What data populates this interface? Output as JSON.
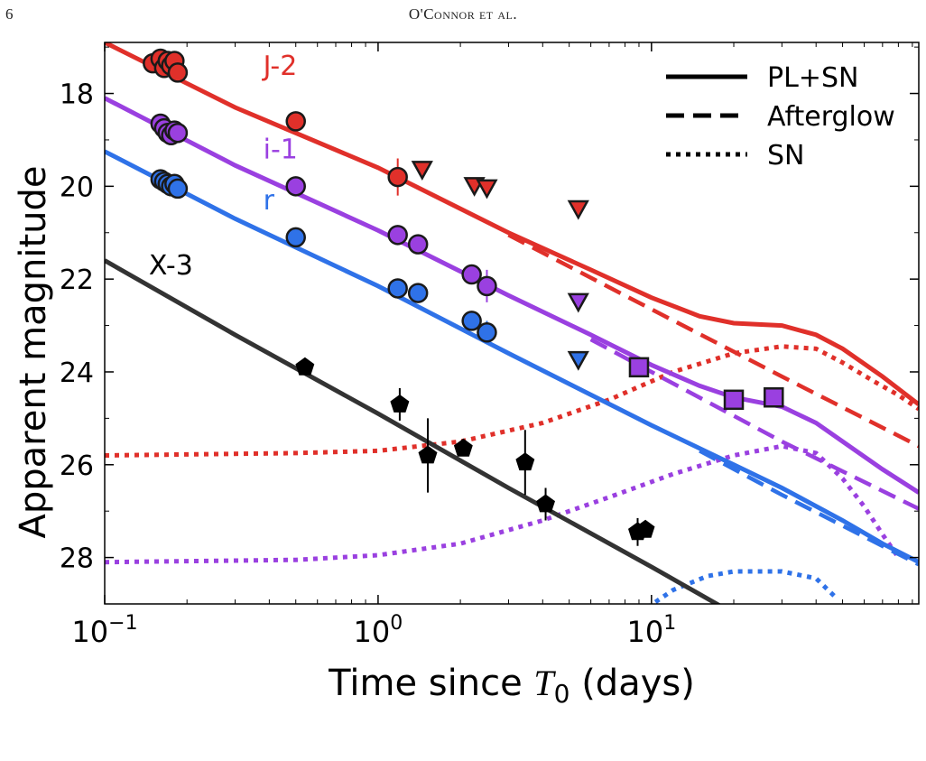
{
  "page": {
    "number": "6",
    "running_head": "O'Connor et al."
  },
  "chart_data": {
    "type": "line",
    "xlabel": "Time since T0 (days)",
    "xlabel_main": "Time since ",
    "xlabel_T": "T",
    "xlabel_sub": "0",
    "xlabel_tail": " (days)",
    "ylabel": "Apparent magnitude",
    "xscale": "log",
    "xlim": [
      0.1,
      95
    ],
    "ylim": [
      29.0,
      16.9
    ],
    "y_inverted": true,
    "xticks": [
      {
        "value": 0.1,
        "base": "10",
        "exp": "−1"
      },
      {
        "value": 1,
        "base": "10",
        "exp": "0"
      },
      {
        "value": 10,
        "base": "10",
        "exp": "1"
      }
    ],
    "yticks": [
      18,
      20,
      22,
      24,
      26,
      28
    ],
    "legend": {
      "placement": "top-right",
      "entries": [
        {
          "label": "PL+SN",
          "style": "solid"
        },
        {
          "label": "Afterglow",
          "style": "dashed"
        },
        {
          "label": "SN",
          "style": "dotted"
        }
      ]
    },
    "series": [
      {
        "name": "J-2",
        "color": "#e0302a",
        "label_pos": [
          0.38,
          17.6
        ],
        "plsn": [
          [
            0.1,
            16.9
          ],
          [
            0.3,
            18.3
          ],
          [
            1,
            19.6
          ],
          [
            3,
            21.0
          ],
          [
            6,
            21.8
          ],
          [
            10,
            22.4
          ],
          [
            15,
            22.8
          ],
          [
            20,
            22.95
          ],
          [
            30,
            23.0
          ],
          [
            40,
            23.2
          ],
          [
            50,
            23.5
          ],
          [
            70,
            24.1
          ],
          [
            95,
            24.7
          ]
        ],
        "afterglow": [
          [
            3,
            21.05
          ],
          [
            10,
            22.65
          ],
          [
            30,
            24.1
          ],
          [
            95,
            25.6
          ]
        ],
        "sn": [
          [
            0.1,
            25.8
          ],
          [
            0.5,
            25.75
          ],
          [
            1,
            25.7
          ],
          [
            2,
            25.5
          ],
          [
            4,
            25.1
          ],
          [
            7,
            24.6
          ],
          [
            12,
            24.0
          ],
          [
            20,
            23.6
          ],
          [
            30,
            23.45
          ],
          [
            40,
            23.5
          ],
          [
            50,
            23.8
          ],
          [
            65,
            24.2
          ],
          [
            80,
            24.5
          ],
          [
            95,
            24.8
          ]
        ],
        "points": [
          {
            "x": 0.15,
            "y": 17.35
          },
          {
            "x": 0.16,
            "y": 17.25
          },
          {
            "x": 0.165,
            "y": 17.45
          },
          {
            "x": 0.17,
            "y": 17.3
          },
          {
            "x": 0.175,
            "y": 17.4
          },
          {
            "x": 0.18,
            "y": 17.3
          },
          {
            "x": 0.185,
            "y": 17.55
          },
          {
            "x": 0.5,
            "y": 18.6
          },
          {
            "x": 1.18,
            "y": 19.8,
            "err": 0.4
          }
        ],
        "limits": [
          {
            "x": 1.45,
            "y": 19.65
          },
          {
            "x": 2.25,
            "y": 20.0
          },
          {
            "x": 2.5,
            "y": 20.05
          },
          {
            "x": 5.4,
            "y": 20.5
          }
        ],
        "squares": []
      },
      {
        "name": "i-1",
        "color": "#9a40e0",
        "label_pos": [
          0.38,
          19.4
        ],
        "plsn": [
          [
            0.1,
            18.1
          ],
          [
            0.3,
            19.55
          ],
          [
            1,
            20.95
          ],
          [
            3,
            22.35
          ],
          [
            6,
            23.2
          ],
          [
            10,
            23.85
          ],
          [
            15,
            24.3
          ],
          [
            20,
            24.55
          ],
          [
            30,
            24.75
          ],
          [
            40,
            25.1
          ],
          [
            50,
            25.5
          ],
          [
            70,
            26.1
          ],
          [
            95,
            26.6
          ]
        ],
        "afterglow": [
          [
            6,
            23.3
          ],
          [
            10,
            24.0
          ],
          [
            30,
            25.5
          ],
          [
            95,
            26.95
          ]
        ],
        "sn": [
          [
            0.1,
            28.1
          ],
          [
            0.5,
            28.05
          ],
          [
            1,
            27.95
          ],
          [
            2,
            27.7
          ],
          [
            4,
            27.2
          ],
          [
            7,
            26.7
          ],
          [
            12,
            26.2
          ],
          [
            20,
            25.8
          ],
          [
            30,
            25.6
          ],
          [
            40,
            25.75
          ],
          [
            50,
            26.3
          ],
          [
            60,
            26.9
          ],
          [
            70,
            27.5
          ],
          [
            80,
            28.0
          ]
        ],
        "points": [
          {
            "x": 0.16,
            "y": 18.65
          },
          {
            "x": 0.165,
            "y": 18.75
          },
          {
            "x": 0.17,
            "y": 18.85
          },
          {
            "x": 0.175,
            "y": 18.9
          },
          {
            "x": 0.18,
            "y": 18.8
          },
          {
            "x": 0.185,
            "y": 18.85
          },
          {
            "x": 0.5,
            "y": 20.0
          },
          {
            "x": 1.18,
            "y": 21.05
          },
          {
            "x": 1.4,
            "y": 21.25
          },
          {
            "x": 2.2,
            "y": 21.9
          },
          {
            "x": 2.5,
            "y": 22.15,
            "err": 0.35
          }
        ],
        "limits": [
          {
            "x": 5.4,
            "y": 22.5
          }
        ],
        "squares": [
          {
            "x": 9.0,
            "y": 23.9
          },
          {
            "x": 20,
            "y": 24.6
          },
          {
            "x": 28,
            "y": 24.55
          }
        ]
      },
      {
        "name": "r",
        "color": "#2f72e8",
        "label_pos": [
          0.38,
          20.5
        ],
        "plsn": [
          [
            0.1,
            19.25
          ],
          [
            0.3,
            20.7
          ],
          [
            1,
            22.15
          ],
          [
            3,
            23.6
          ],
          [
            10,
            25.15
          ],
          [
            20,
            26.0
          ],
          [
            30,
            26.5
          ],
          [
            50,
            27.2
          ],
          [
            70,
            27.7
          ],
          [
            95,
            28.1
          ]
        ],
        "afterglow": [
          [
            15,
            25.7
          ],
          [
            30,
            26.65
          ],
          [
            60,
            27.55
          ],
          [
            95,
            28.15
          ]
        ],
        "sn": [
          [
            9,
            29.2
          ],
          [
            12,
            28.7
          ],
          [
            16,
            28.4
          ],
          [
            20,
            28.3
          ],
          [
            30,
            28.3
          ],
          [
            40,
            28.45
          ],
          [
            48,
            28.9
          ]
        ],
        "points": [
          {
            "x": 0.16,
            "y": 19.85
          },
          {
            "x": 0.165,
            "y": 19.9
          },
          {
            "x": 0.17,
            "y": 19.95
          },
          {
            "x": 0.175,
            "y": 20.0
          },
          {
            "x": 0.18,
            "y": 19.95
          },
          {
            "x": 0.185,
            "y": 20.05
          },
          {
            "x": 0.5,
            "y": 21.1
          },
          {
            "x": 1.18,
            "y": 22.2
          },
          {
            "x": 1.4,
            "y": 22.3
          },
          {
            "x": 2.2,
            "y": 22.9
          },
          {
            "x": 2.5,
            "y": 23.15,
            "err": 0.25
          }
        ],
        "limits": [
          {
            "x": 5.4,
            "y": 23.75
          }
        ],
        "squares": []
      },
      {
        "name": "X-3",
        "color": "#333333",
        "label_pos": [
          0.145,
          21.9
        ],
        "plsn": [
          [
            0.1,
            21.6
          ],
          [
            0.3,
            23.2
          ],
          [
            1,
            24.9
          ],
          [
            3,
            26.5
          ],
          [
            10,
            28.2
          ],
          [
            30,
            29.8
          ]
        ],
        "afterglow": [],
        "sn": [],
        "pentagons": [
          {
            "x": 0.54,
            "y": 23.9
          },
          {
            "x": 1.2,
            "y": 24.7,
            "err": 0.35
          },
          {
            "x": 1.52,
            "y": 25.8,
            "err": 0.8
          },
          {
            "x": 2.05,
            "y": 25.65
          },
          {
            "x": 3.45,
            "y": 25.95,
            "err": 0.7
          },
          {
            "x": 4.1,
            "y": 26.85,
            "err": 0.35
          },
          {
            "x": 8.9,
            "y": 27.45,
            "err": 0.3
          },
          {
            "x": 9.5,
            "y": 27.4
          }
        ]
      }
    ]
  }
}
